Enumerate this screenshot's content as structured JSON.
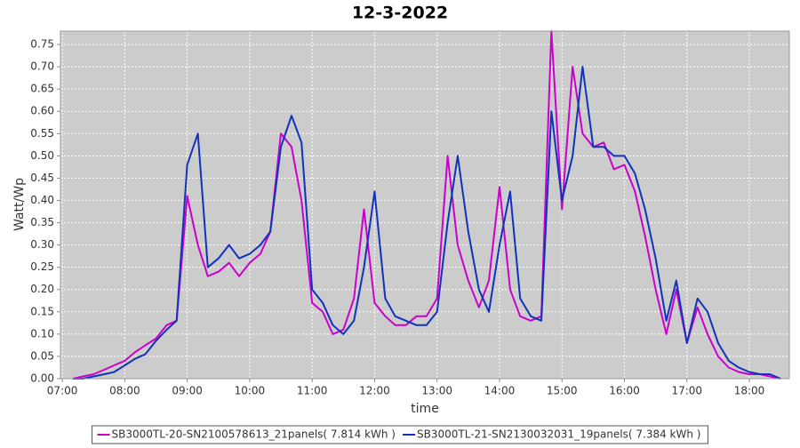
{
  "chart_data": {
    "type": "line",
    "title": "12-3-2022",
    "x_label": "time",
    "y_label": "Watt/Wp",
    "x": [
      7.17,
      7.33,
      7.5,
      7.67,
      7.83,
      8,
      8.17,
      8.33,
      8.5,
      8.67,
      8.83,
      9,
      9.17,
      9.33,
      9.5,
      9.67,
      9.83,
      10,
      10.17,
      10.33,
      10.5,
      10.67,
      10.83,
      11,
      11.17,
      11.33,
      11.5,
      11.67,
      11.83,
      12,
      12.17,
      12.33,
      12.5,
      12.67,
      12.83,
      13,
      13.17,
      13.33,
      13.5,
      13.67,
      13.83,
      14,
      14.17,
      14.33,
      14.5,
      14.67,
      14.83,
      15,
      15.17,
      15.33,
      15.5,
      15.67,
      15.83,
      16,
      16.17,
      16.33,
      16.5,
      16.67,
      16.83,
      17,
      17.17,
      17.33,
      17.5,
      17.67,
      17.83,
      18,
      18.17,
      18.33,
      18.5
    ],
    "series": [
      {
        "name": "SB3000TL-20-SN2100578613_21panels( 7.814 kWh )",
        "color": "#cc00cc",
        "values": [
          0,
          0.005,
          0.01,
          0.02,
          0.03,
          0.04,
          0.06,
          0.075,
          0.09,
          0.12,
          0.13,
          0.41,
          0.3,
          0.23,
          0.24,
          0.26,
          0.23,
          0.26,
          0.28,
          0.33,
          0.55,
          0.52,
          0.4,
          0.17,
          0.15,
          0.1,
          0.11,
          0.18,
          0.38,
          0.17,
          0.14,
          0.12,
          0.12,
          0.14,
          0.14,
          0.18,
          0.5,
          0.3,
          0.22,
          0.16,
          0.22,
          0.43,
          0.2,
          0.14,
          0.13,
          0.14,
          0.78,
          0.38,
          0.7,
          0.55,
          0.52,
          0.53,
          0.47,
          0.48,
          0.42,
          0.32,
          0.2,
          0.1,
          0.2,
          0.08,
          0.16,
          0.1,
          0.05,
          0.025,
          0.015,
          0.01,
          0.01,
          0.005,
          0
        ]
      },
      {
        "name": "SB3000TL-21-SN2130032031_19panels( 7.384 kWh )",
        "color": "#1133bb",
        "values": [
          0,
          0,
          0.005,
          0.01,
          0.015,
          0.03,
          0.045,
          0.055,
          0.085,
          0.11,
          0.13,
          0.48,
          0.55,
          0.25,
          0.27,
          0.3,
          0.27,
          0.28,
          0.3,
          0.33,
          0.52,
          0.59,
          0.53,
          0.2,
          0.17,
          0.12,
          0.1,
          0.13,
          0.25,
          0.42,
          0.18,
          0.14,
          0.13,
          0.12,
          0.12,
          0.15,
          0.35,
          0.5,
          0.33,
          0.2,
          0.15,
          0.3,
          0.42,
          0.18,
          0.14,
          0.13,
          0.6,
          0.4,
          0.5,
          0.7,
          0.52,
          0.52,
          0.5,
          0.5,
          0.46,
          0.38,
          0.27,
          0.13,
          0.22,
          0.08,
          0.18,
          0.15,
          0.08,
          0.04,
          0.025,
          0.015,
          0.01,
          0.01,
          0
        ]
      }
    ],
    "xlim": [
      6.97,
      18.64
    ],
    "ylim": [
      0,
      0.78
    ],
    "xticks": [
      {
        "value": 7,
        "label": "07:00"
      },
      {
        "value": 8,
        "label": "08:00"
      },
      {
        "value": 9,
        "label": "09:00"
      },
      {
        "value": 10,
        "label": "10:00"
      },
      {
        "value": 11,
        "label": "11:00"
      },
      {
        "value": 12,
        "label": "12:00"
      },
      {
        "value": 13,
        "label": "13:00"
      },
      {
        "value": 14,
        "label": "14:00"
      },
      {
        "value": 15,
        "label": "15:00"
      },
      {
        "value": 16,
        "label": "16:00"
      },
      {
        "value": 17,
        "label": "17:00"
      },
      {
        "value": 18,
        "label": "18:00"
      }
    ],
    "yticks": [
      {
        "value": 0,
        "label": "0.00"
      },
      {
        "value": 0.05,
        "label": "0.05"
      },
      {
        "value": 0.1,
        "label": "0.10"
      },
      {
        "value": 0.15,
        "label": "0.15"
      },
      {
        "value": 0.2,
        "label": "0.20"
      },
      {
        "value": 0.25,
        "label": "0.25"
      },
      {
        "value": 0.3,
        "label": "0.30"
      },
      {
        "value": 0.35,
        "label": "0.35"
      },
      {
        "value": 0.4,
        "label": "0.40"
      },
      {
        "value": 0.45,
        "label": "0.45"
      },
      {
        "value": 0.5,
        "label": "0.50"
      },
      {
        "value": 0.55,
        "label": "0.55"
      },
      {
        "value": 0.6,
        "label": "0.60"
      },
      {
        "value": 0.65,
        "label": "0.65"
      },
      {
        "value": 0.7,
        "label": "0.70"
      },
      {
        "value": 0.75,
        "label": "0.75"
      }
    ],
    "grid": true,
    "legend": "bottom"
  }
}
